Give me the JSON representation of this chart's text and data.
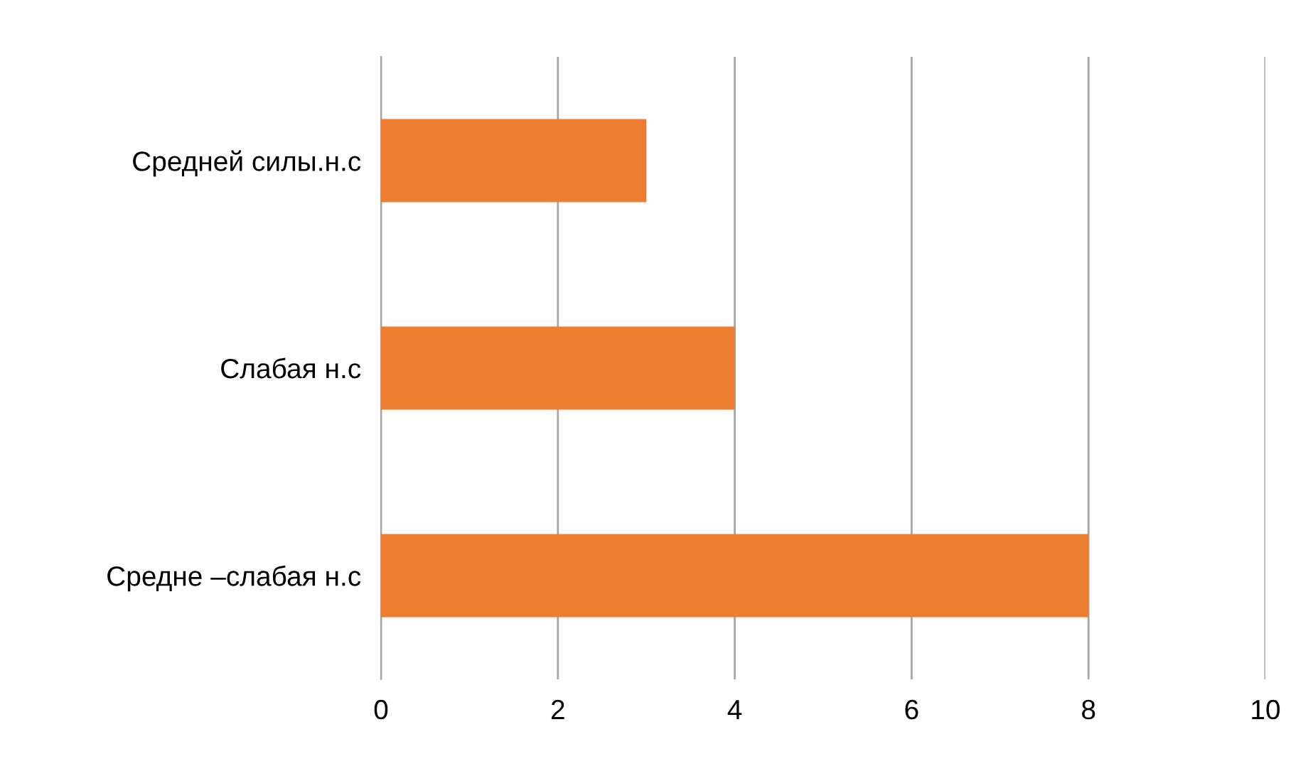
{
  "chart_data": {
    "type": "bar",
    "orientation": "horizontal",
    "categories": [
      "Средней силы.н.с",
      "Слабая н.с",
      "Средне –слабая н.с"
    ],
    "values": [
      3,
      4,
      8
    ],
    "color": "#ed7d31",
    "xlim": [
      0,
      10
    ],
    "xticks": [
      0,
      2,
      4,
      6,
      8,
      10
    ],
    "grid": "x",
    "legend": false
  }
}
